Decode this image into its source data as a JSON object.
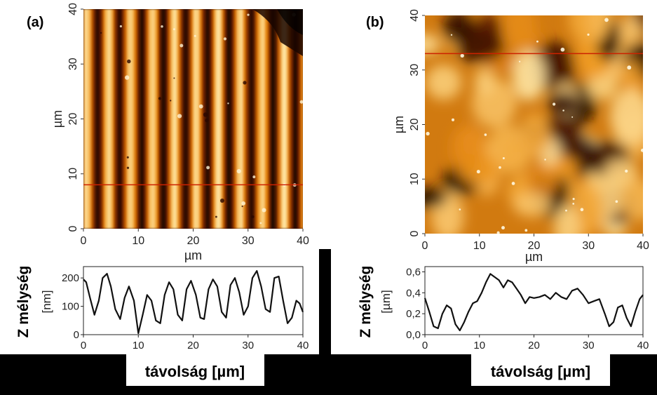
{
  "chart_data": [
    {
      "id": "a",
      "type": "heatmap",
      "panel_label": "(a)",
      "xlabel": "µm",
      "ylabel": "µm",
      "xlim": [
        0,
        40
      ],
      "ylim": [
        0,
        40
      ],
      "x_ticks": [
        "0",
        "10",
        "20",
        "30",
        "40"
      ],
      "y_ticks": [
        "0",
        "10",
        "20",
        "30",
        "40"
      ],
      "description_pattern": "vertical stripes",
      "stripe_period_um": 4.0,
      "profile_line_y_um": 8,
      "colormap": [
        "#1a0600",
        "#6a1f00",
        "#c25a00",
        "#f09a20",
        "#ffe8a8"
      ]
    },
    {
      "id": "b",
      "type": "heatmap",
      "panel_label": "(b)",
      "xlabel": "µm",
      "ylabel": "µm",
      "xlim": [
        0,
        40
      ],
      "ylim": [
        0,
        40
      ],
      "x_ticks": [
        "0",
        "10",
        "20",
        "30",
        "40"
      ],
      "y_ticks": [
        "0",
        "10",
        "20",
        "30",
        "40"
      ],
      "description_pattern": "irregular blobs",
      "profile_line_y_um": 33,
      "colormap": [
        "#1a0600",
        "#6a1f00",
        "#c25a00",
        "#f09a20",
        "#ffe8a8"
      ]
    },
    {
      "id": "a-profile",
      "type": "line",
      "xlabel": "távolság [µm]",
      "ylabel": "Z mélység",
      "yunit": "[nm]",
      "xlim": [
        0,
        40
      ],
      "ylim": [
        0,
        240
      ],
      "x_ticks": [
        "0",
        "10",
        "20",
        "30",
        "40"
      ],
      "y_ticks": [
        "0",
        "100",
        "200"
      ],
      "y_tick_values": [
        0,
        100,
        200
      ],
      "series": [
        {
          "x": [
            0,
            0.5,
            1.2,
            2.0,
            2.8,
            3.5,
            4.3,
            5.0,
            5.8,
            6.7,
            7.5,
            8.3,
            9.2,
            10.0,
            10.8,
            11.6,
            12.4,
            13.2,
            14.0,
            14.8,
            15.6,
            16.4,
            17.2,
            18.0,
            18.8,
            19.6,
            20.5,
            21.3,
            22.0,
            22.8,
            23.6,
            24.4,
            25.2,
            26.0,
            26.8,
            27.6,
            28.4,
            29.2,
            30.0,
            30.8,
            31.6,
            32.4,
            33.2,
            34.0,
            34.8,
            35.6,
            36.4,
            37.2,
            38.0,
            38.8,
            39.4,
            40.0
          ],
          "y": [
            195,
            185,
            130,
            70,
            120,
            200,
            215,
            170,
            90,
            55,
            130,
            170,
            120,
            5,
            70,
            140,
            120,
            50,
            40,
            140,
            185,
            160,
            70,
            50,
            160,
            190,
            140,
            60,
            55,
            160,
            195,
            170,
            80,
            60,
            175,
            200,
            150,
            70,
            100,
            200,
            225,
            170,
            90,
            80,
            200,
            205,
            120,
            40,
            60,
            120,
            110,
            80
          ]
        }
      ]
    },
    {
      "id": "b-profile",
      "type": "line",
      "xlabel": "távolság [µm]",
      "ylabel": "Z mélység",
      "yunit": "[µm]",
      "xlim": [
        0,
        40
      ],
      "ylim": [
        0,
        0.65
      ],
      "x_ticks": [
        "0",
        "10",
        "20",
        "30",
        "40"
      ],
      "y_ticks": [
        "0,0",
        "0,2",
        "0,4",
        "0,6"
      ],
      "y_tick_values": [
        0,
        0.2,
        0.4,
        0.6
      ],
      "series": [
        {
          "x": [
            0,
            0.8,
            1.6,
            2.4,
            3.2,
            4.0,
            4.8,
            5.6,
            6.4,
            7.2,
            8.0,
            8.8,
            9.6,
            10.4,
            11.2,
            12.0,
            12.8,
            13.6,
            14.4,
            15.2,
            16.0,
            16.8,
            17.6,
            18.4,
            19.2,
            20.0,
            21.0,
            22.0,
            23.0,
            24.0,
            25.0,
            26.0,
            27.0,
            28.0,
            29.0,
            30.0,
            31.0,
            32.0,
            33.0,
            33.8,
            34.6,
            35.4,
            36.2,
            37.0,
            37.8,
            38.6,
            39.4,
            40.0
          ],
          "y": [
            0.35,
            0.22,
            0.08,
            0.06,
            0.2,
            0.28,
            0.25,
            0.1,
            0.04,
            0.12,
            0.22,
            0.3,
            0.32,
            0.4,
            0.5,
            0.58,
            0.55,
            0.52,
            0.45,
            0.52,
            0.5,
            0.44,
            0.38,
            0.3,
            0.36,
            0.35,
            0.36,
            0.38,
            0.34,
            0.4,
            0.36,
            0.34,
            0.42,
            0.44,
            0.38,
            0.3,
            0.32,
            0.34,
            0.2,
            0.08,
            0.12,
            0.26,
            0.28,
            0.16,
            0.08,
            0.22,
            0.34,
            0.38
          ]
        }
      ]
    }
  ],
  "colors": {
    "background": "#000000",
    "panel_bg": "#ffffff",
    "profile_line": "#cc2200",
    "line": "#111111"
  }
}
